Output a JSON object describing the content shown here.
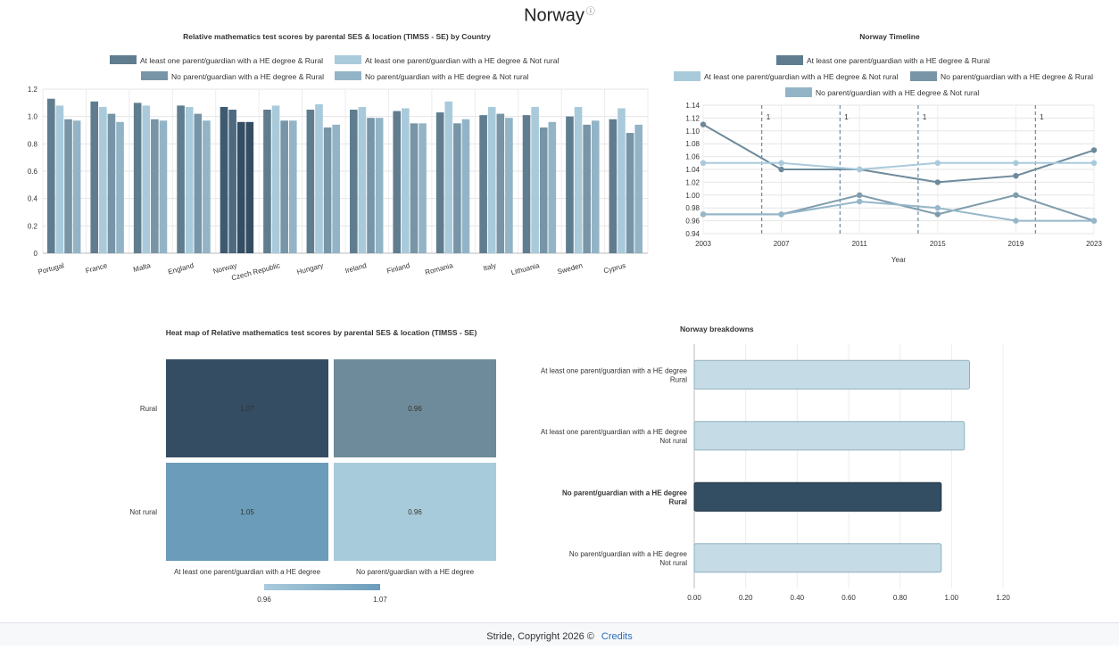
{
  "page": {
    "title": "Norway",
    "info_icon": "info-circle-icon",
    "footer_text": "Stride, Copyright 2026 ©",
    "footer_link": "Credits"
  },
  "colors": {
    "he_rural": "#5f7d8e",
    "he_notrural": "#a9cadb",
    "nohe_rural": "#7795a6",
    "nohe_notrural": "#92b4c6",
    "highlight": "#334d63",
    "bar_light": "#c5dbe5"
  },
  "legend_labels": {
    "he_rural": "At least one parent/guardian with a HE degree & Rural",
    "he_notrural": "At least one parent/guardian with a HE degree & Not rural",
    "nohe_rural": "No parent/guardian with a HE degree & Rural",
    "nohe_notrural": "No parent/guardian with a HE degree & Not rural"
  },
  "chart_data": [
    {
      "type": "bar",
      "title": "Relative mathematics test scores by parental SES & location (TIMSS - SE) by Country",
      "categories": [
        "Portugal",
        "France",
        "Malta",
        "England",
        "Norway",
        "Czech Republic",
        "Hungary",
        "Ireland",
        "Finland",
        "Romania",
        "Italy",
        "Lithuania",
        "Sweden",
        "Cyprus"
      ],
      "highlight_category": "Norway",
      "series": [
        {
          "name": "At least one parent/guardian with a HE degree & Rural",
          "values": [
            1.13,
            1.11,
            1.1,
            1.08,
            1.07,
            1.05,
            1.05,
            1.05,
            1.04,
            1.03,
            1.01,
            1.01,
            1.0,
            0.98
          ]
        },
        {
          "name": "At least one parent/guardian with a HE degree & Not rural",
          "values": [
            1.08,
            1.07,
            1.08,
            1.07,
            1.05,
            1.08,
            1.09,
            1.07,
            1.06,
            1.11,
            1.07,
            1.07,
            1.07,
            1.06
          ]
        },
        {
          "name": "No parent/guardian with a HE degree & Rural",
          "values": [
            0.98,
            1.02,
            0.98,
            1.02,
            0.96,
            0.97,
            0.92,
            0.99,
            0.95,
            0.95,
            1.02,
            0.92,
            0.94,
            0.88
          ]
        },
        {
          "name": "No parent/guardian with a HE degree & Not rural",
          "values": [
            0.97,
            0.96,
            0.97,
            0.97,
            0.96,
            0.97,
            0.94,
            0.99,
            0.95,
            0.98,
            0.99,
            0.96,
            0.97,
            0.94
          ]
        }
      ],
      "ylim": [
        0,
        1.2
      ],
      "yticks": [
        "0",
        "0.2",
        "0.4",
        "0.6",
        "0.8",
        "1.0",
        "1.2"
      ],
      "legend": "top",
      "grid": true
    },
    {
      "type": "line",
      "title": "Norway Timeline",
      "x": [
        2003,
        2007,
        2011,
        2015,
        2019,
        2023
      ],
      "xlabel": "Year",
      "ylim": [
        0.94,
        1.14
      ],
      "yticks": [
        "0.94",
        "0.96",
        "0.98",
        "1.00",
        "1.02",
        "1.04",
        "1.06",
        "1.08",
        "1.10",
        "1.12",
        "1.14"
      ],
      "series": [
        {
          "name": "At least one parent/guardian with a HE degree & Rural",
          "values": [
            1.11,
            1.04,
            1.04,
            1.02,
            1.03,
            1.07
          ]
        },
        {
          "name": "At least one parent/guardian with a HE degree & Not rural",
          "values": [
            1.05,
            1.05,
            1.04,
            1.05,
            1.05,
            1.05
          ]
        },
        {
          "name": "No parent/guardian with a HE degree & Rural",
          "values": [
            0.97,
            0.97,
            1.0,
            0.97,
            1.0,
            0.96
          ]
        },
        {
          "name": "No parent/guardian with a HE degree & Not rural",
          "values": [
            0.97,
            0.97,
            0.99,
            0.98,
            0.96,
            0.96
          ]
        }
      ],
      "annotations": [
        {
          "x": 2006,
          "label": "1"
        },
        {
          "x": 2010,
          "label": "1"
        },
        {
          "x": 2014,
          "label": "1"
        },
        {
          "x": 2020,
          "label": "1"
        }
      ],
      "legend": "top",
      "grid": true
    },
    {
      "type": "heatmap",
      "title": "Heat map of Relative mathematics test scores by parental SES & location (TIMSS - SE)",
      "rows": [
        "Rural",
        "Not rural"
      ],
      "columns": [
        "At least one parent/guardian with a HE degree",
        "No parent/guardian with a HE degree"
      ],
      "values": [
        [
          1.07,
          0.96
        ],
        [
          1.05,
          0.96
        ]
      ],
      "labels": [
        [
          "1.07",
          "0.96"
        ],
        [
          "1.05",
          "0.96"
        ]
      ],
      "scale_min": 0.96,
      "scale_max": 1.07,
      "scale_min_label": "0.96",
      "scale_max_label": "1.07"
    },
    {
      "type": "bar",
      "orientation": "horizontal",
      "title": "Norway breakdowns",
      "categories": [
        [
          "At least one parent/guardian with a HE degree",
          "Rural"
        ],
        [
          "At least one parent/guardian with a HE degree",
          "Not rural"
        ],
        [
          "No parent/guardian with a HE degree",
          "Rural"
        ],
        [
          "No parent/guardian with a HE degree",
          "Not rural"
        ]
      ],
      "values": [
        1.07,
        1.05,
        0.96,
        0.96
      ],
      "highlight_index": 2,
      "xlim": [
        0,
        1.2
      ],
      "xticks": [
        "0.00",
        "0.20",
        "0.40",
        "0.60",
        "0.80",
        "1.00",
        "1.20"
      ],
      "grid": true
    }
  ]
}
